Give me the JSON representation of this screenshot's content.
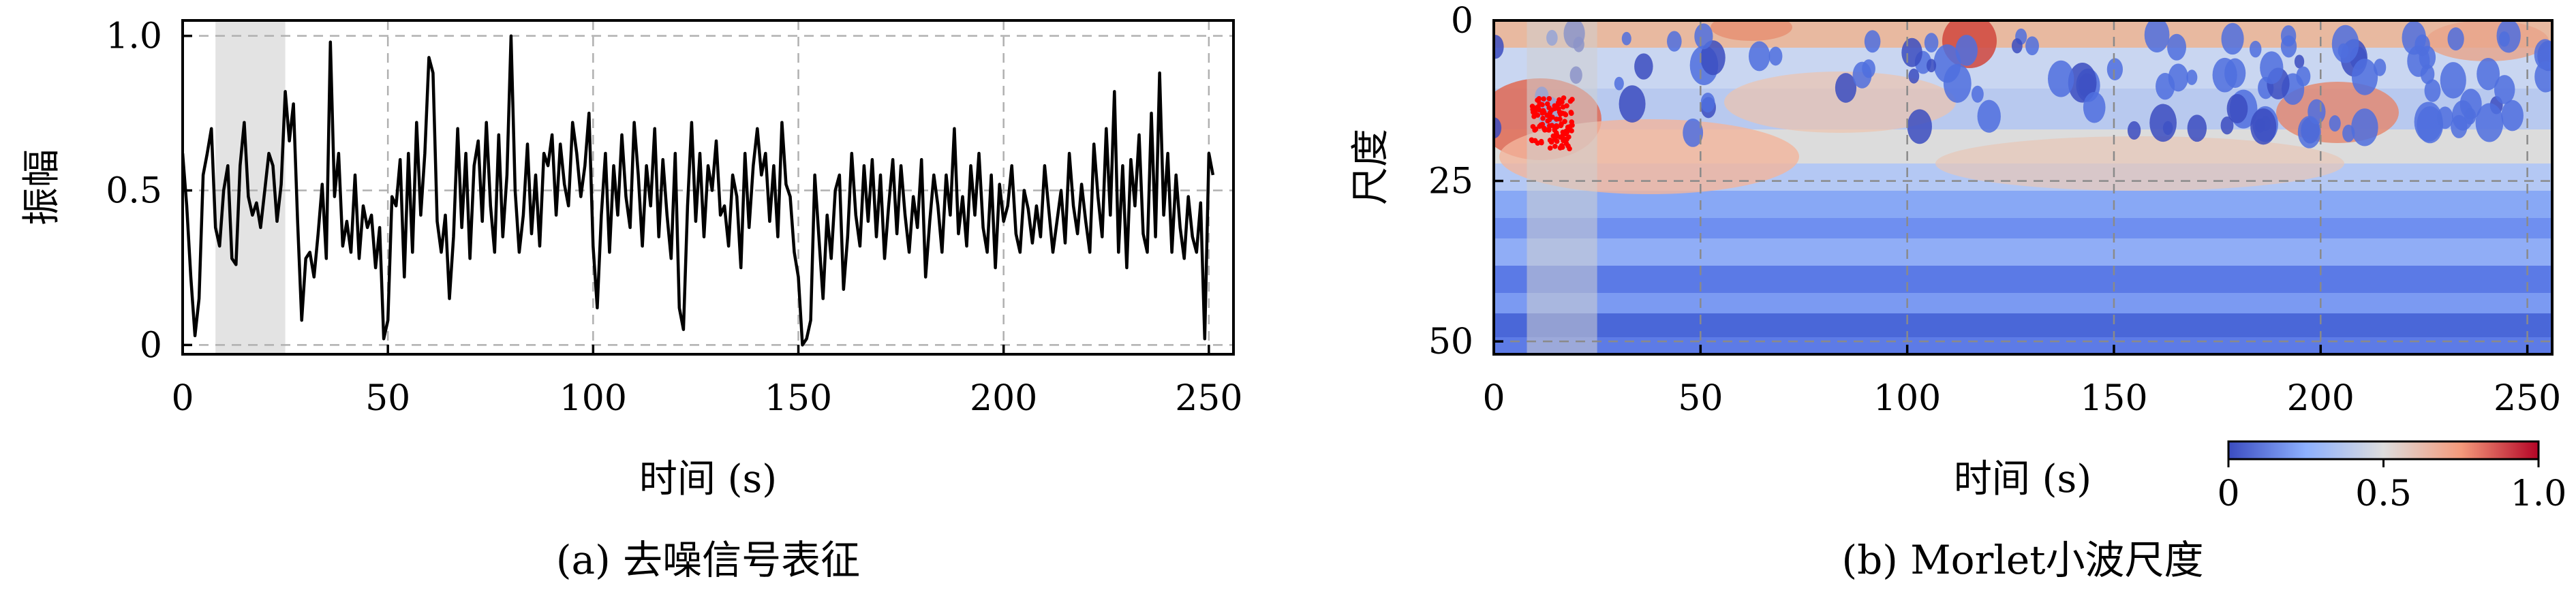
{
  "chart_data": [
    {
      "type": "line",
      "panel": "a",
      "caption": "(a) 去噪信号表征",
      "xlabel": "时间 (s)",
      "ylabel": "振幅",
      "xlim": [
        0,
        256
      ],
      "ylim": [
        -0.03,
        1.05
      ],
      "x_ticks": [
        0,
        50,
        100,
        150,
        200,
        250
      ],
      "x_tick_labels": [
        "0",
        "50",
        "100",
        "150",
        "200",
        "250"
      ],
      "y_ticks": [
        0,
        0.5,
        1.0
      ],
      "y_tick_labels": [
        "0",
        "0.5",
        "1.0"
      ],
      "grid": true,
      "highlight_span": [
        8,
        25
      ],
      "highlight_color": "#d9d9d9",
      "line_color": "#000000",
      "x_start": 0,
      "x_step": 1,
      "series": [
        {
          "values": [
            0.62,
            0.45,
            0.22,
            0.03,
            0.15,
            0.55,
            0.62,
            0.7,
            0.38,
            0.32,
            0.5,
            0.58,
            0.28,
            0.26,
            0.58,
            0.72,
            0.48,
            0.42,
            0.46,
            0.38,
            0.5,
            0.62,
            0.58,
            0.4,
            0.52,
            0.82,
            0.66,
            0.78,
            0.4,
            0.08,
            0.28,
            0.3,
            0.22,
            0.36,
            0.52,
            0.28,
            0.98,
            0.48,
            0.62,
            0.32,
            0.4,
            0.3,
            0.55,
            0.28,
            0.45,
            0.38,
            0.42,
            0.25,
            0.38,
            0.02,
            0.08,
            0.48,
            0.45,
            0.6,
            0.22,
            0.62,
            0.3,
            0.72,
            0.42,
            0.62,
            0.93,
            0.88,
            0.4,
            0.3,
            0.42,
            0.15,
            0.35,
            0.7,
            0.38,
            0.62,
            0.28,
            0.58,
            0.66,
            0.4,
            0.72,
            0.45,
            0.3,
            0.68,
            0.35,
            0.55,
            1.0,
            0.5,
            0.3,
            0.42,
            0.65,
            0.36,
            0.55,
            0.32,
            0.62,
            0.58,
            0.68,
            0.42,
            0.65,
            0.52,
            0.45,
            0.72,
            0.62,
            0.48,
            0.58,
            0.75,
            0.32,
            0.12,
            0.42,
            0.62,
            0.3,
            0.58,
            0.42,
            0.68,
            0.48,
            0.38,
            0.72,
            0.55,
            0.32,
            0.58,
            0.45,
            0.7,
            0.35,
            0.6,
            0.42,
            0.28,
            0.62,
            0.12,
            0.05,
            0.45,
            0.72,
            0.4,
            0.62,
            0.35,
            0.58,
            0.5,
            0.66,
            0.42,
            0.45,
            0.32,
            0.55,
            0.48,
            0.25,
            0.62,
            0.38,
            0.58,
            0.7,
            0.55,
            0.62,
            0.4,
            0.58,
            0.35,
            0.72,
            0.52,
            0.48,
            0.3,
            0.22,
            0.0,
            0.02,
            0.08,
            0.55,
            0.35,
            0.15,
            0.42,
            0.28,
            0.5,
            0.55,
            0.18,
            0.35,
            0.62,
            0.42,
            0.32,
            0.58,
            0.4,
            0.6,
            0.35,
            0.55,
            0.28,
            0.45,
            0.6,
            0.36,
            0.58,
            0.42,
            0.3,
            0.48,
            0.38,
            0.6,
            0.22,
            0.4,
            0.55,
            0.45,
            0.3,
            0.55,
            0.42,
            0.7,
            0.36,
            0.48,
            0.32,
            0.58,
            0.42,
            0.62,
            0.38,
            0.3,
            0.55,
            0.25,
            0.52,
            0.4,
            0.45,
            0.58,
            0.36,
            0.3,
            0.5,
            0.44,
            0.33,
            0.45,
            0.35,
            0.58,
            0.44,
            0.3,
            0.4,
            0.5,
            0.33,
            0.62,
            0.45,
            0.36,
            0.52,
            0.4,
            0.3,
            0.65,
            0.48,
            0.35,
            0.7,
            0.42,
            0.82,
            0.3,
            0.58,
            0.25,
            0.6,
            0.45,
            0.68,
            0.36,
            0.3,
            0.75,
            0.35,
            0.88,
            0.42,
            0.62,
            0.3,
            0.55,
            0.38,
            0.28,
            0.48,
            0.35,
            0.3,
            0.46,
            0.02,
            0.62,
            0.55
          ]
        }
      ]
    },
    {
      "type": "heatmap",
      "panel": "b",
      "caption": "(b) Morlet小波尺度",
      "xlabel": "时间 (s)",
      "ylabel": "尺度",
      "xlim": [
        0,
        256
      ],
      "ylim": [
        52,
        0
      ],
      "x_ticks": [
        0,
        50,
        100,
        150,
        200,
        250
      ],
      "x_tick_labels": [
        "0",
        "50",
        "100",
        "150",
        "200",
        "250"
      ],
      "y_ticks": [
        0,
        25,
        50
      ],
      "y_tick_labels": [
        "0",
        "25",
        "50"
      ],
      "grid": true,
      "highlight_span": [
        8,
        25
      ],
      "colormap": "coolwarm",
      "colormap_stops": [
        "#3b4cc0",
        "#dddddd",
        "#b40426"
      ],
      "colorbar": {
        "range": [
          0,
          1
        ],
        "ticks": [
          0,
          0.5,
          1.0
        ],
        "tick_labels": [
          "0",
          "0.5",
          "1.0"
        ],
        "placement": "bottom-right"
      },
      "hot_region": {
        "time_range": [
          9,
          19
        ],
        "scale_range": [
          12,
          20
        ],
        "marker_color": "#ff0000"
      }
    }
  ]
}
